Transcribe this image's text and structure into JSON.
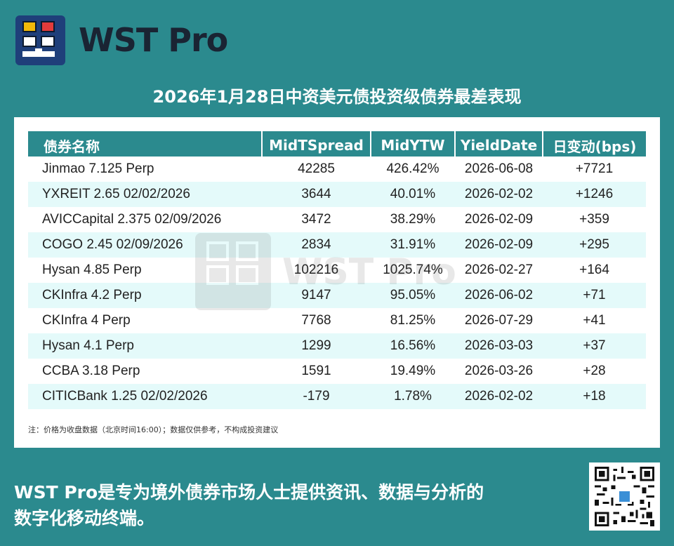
{
  "header": {
    "brand": "WST Pro",
    "title": "2026年1月28日中资美元债投资级债券最差表现"
  },
  "table": {
    "columns": [
      "债券名称",
      "MidTSpread",
      "MidYTW",
      "YieldDate",
      "日变动(bps)"
    ],
    "rows": [
      [
        "Jinmao 7.125 Perp",
        "42285",
        "426.42%",
        "2026-06-08",
        "+7721"
      ],
      [
        "YXREIT 2.65 02/02/2026",
        "3644",
        "40.01%",
        "2026-02-02",
        "+1246"
      ],
      [
        "AVICCapital 2.375 02/09/2026",
        "3472",
        "38.29%",
        "2026-02-09",
        "+359"
      ],
      [
        "COGO 2.45 02/09/2026",
        "2834",
        "31.91%",
        "2026-02-09",
        "+295"
      ],
      [
        "Hysan 4.85 Perp",
        "102216",
        "1025.74%",
        "2026-02-27",
        "+164"
      ],
      [
        "CKInfra 4.2 Perp",
        "9147",
        "95.05%",
        "2026-06-02",
        "+71"
      ],
      [
        "CKInfra 4 Perp",
        "7768",
        "81.25%",
        "2026-07-29",
        "+41"
      ],
      [
        "Hysan 4.1 Perp",
        "1299",
        "16.56%",
        "2026-03-03",
        "+37"
      ],
      [
        "CCBA 3.18 Perp",
        "1591",
        "19.49%",
        "2026-03-26",
        "+28"
      ],
      [
        "CITICBank 1.25 02/02/2026",
        "-179",
        "1.78%",
        "2026-02-02",
        "+18"
      ]
    ]
  },
  "note": "注：价格为收盘数据（北京时间16:00）；数据仅供参考，不构成投资建议",
  "watermark": "WST Pro",
  "footer": {
    "line1": "WST Pro是专为境外债券市场人士提供资讯、数据与分析的",
    "line2": "数字化移动终端。"
  },
  "icons": {
    "logo": "wst-logo-icon",
    "qr": "qr-code-icon"
  },
  "colors": {
    "background": "#2b8a8e",
    "header_bg": "#2b8a8e",
    "row_alt": "#e4fafa"
  }
}
